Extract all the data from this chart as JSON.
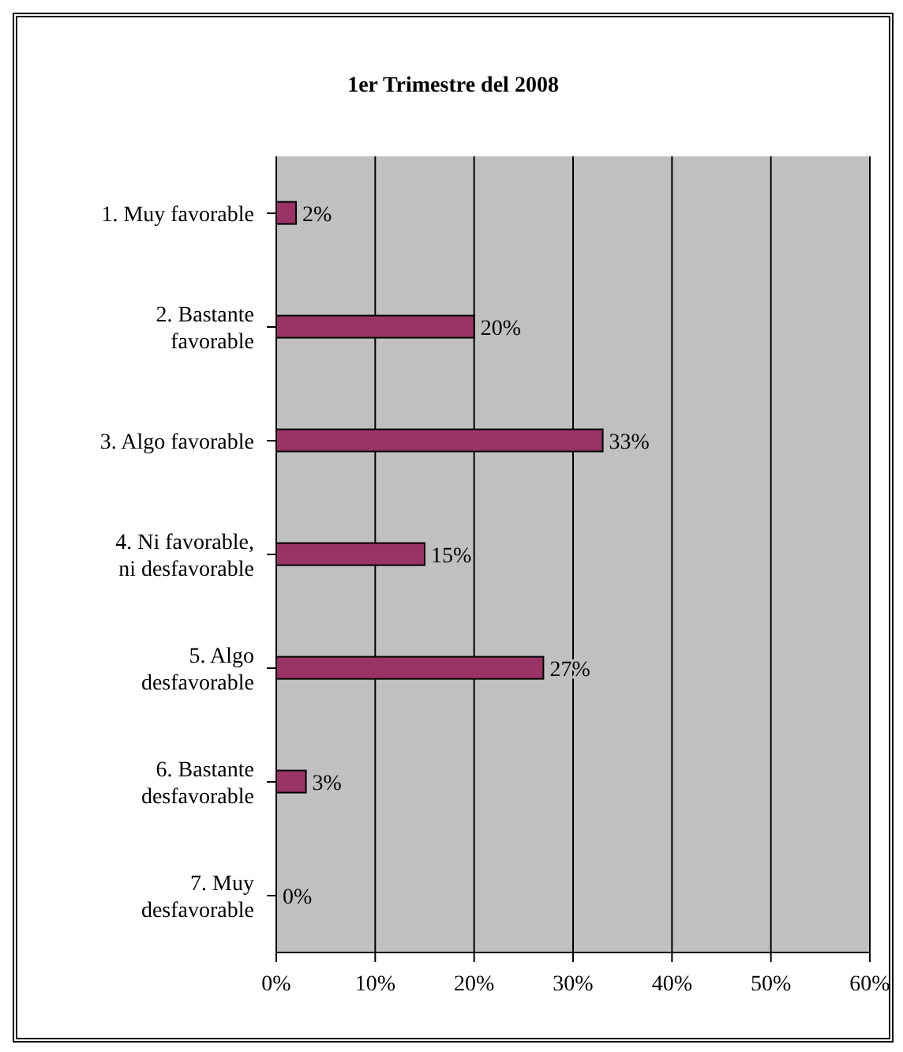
{
  "chart_data": {
    "type": "bar",
    "orientation": "horizontal",
    "title": "1er Trimestre del 2008",
    "categories": [
      "1. Muy favorable",
      "2. Bastante\nfavorable",
      "3. Algo favorable",
      "4. Ni favorable,\nni desfavorable",
      "5. Algo\ndesfavorable",
      "6. Bastante\ndesfavorable",
      "7. Muy\ndesfavorable"
    ],
    "values": [
      2,
      20,
      33,
      15,
      27,
      3,
      0
    ],
    "value_labels": [
      "2%",
      "20%",
      "33%",
      "15%",
      "27%",
      "3%",
      "0%"
    ],
    "color": "#993366",
    "xlim": [
      0,
      60
    ],
    "xticks": [
      {
        "value": 0,
        "label": "0%"
      },
      {
        "value": 10,
        "label": "10%"
      },
      {
        "value": 20,
        "label": "20%"
      },
      {
        "value": 30,
        "label": "30%"
      },
      {
        "value": 40,
        "label": "40%"
      },
      {
        "value": 50,
        "label": "50%"
      },
      {
        "value": 60,
        "label": "60%"
      }
    ],
    "grid": "x",
    "legend": false
  }
}
